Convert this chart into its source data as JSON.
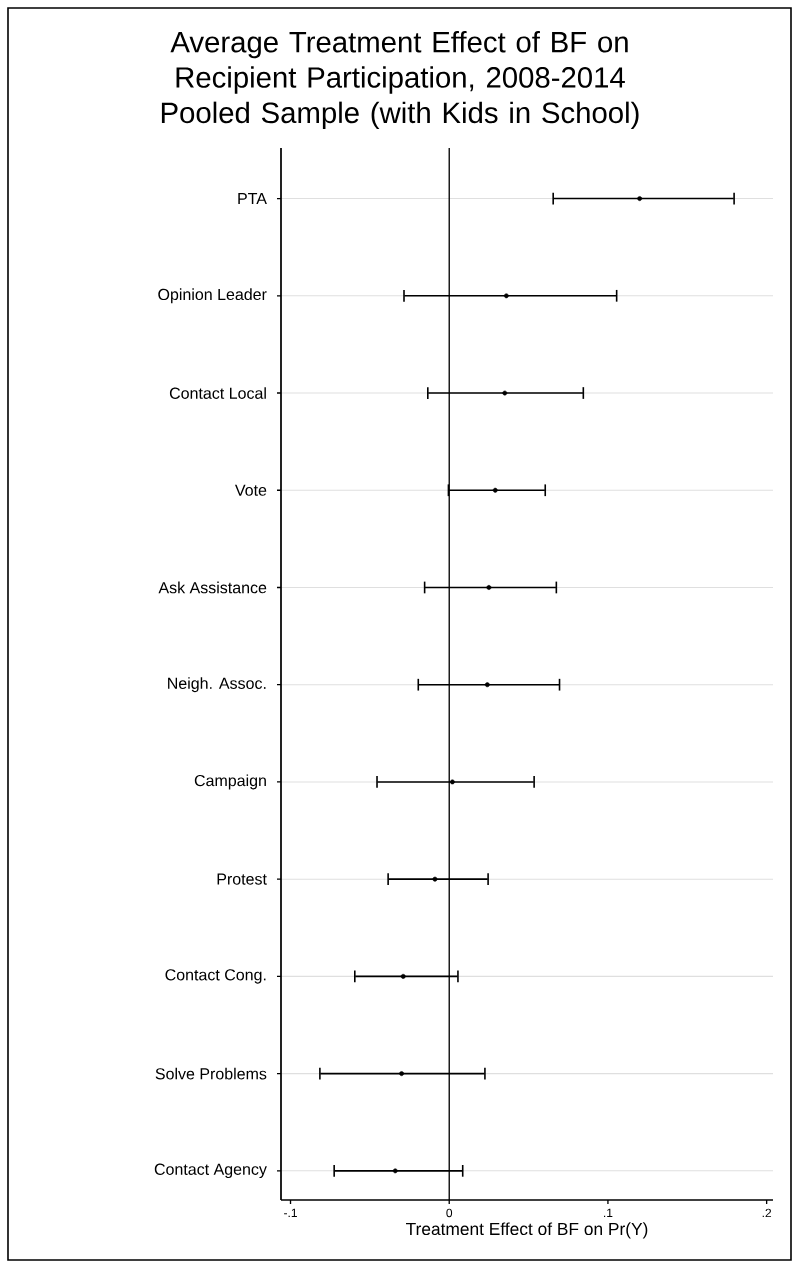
{
  "chart_data": {
    "type": "scatter",
    "orientation": "horizontal",
    "title": "Average Treatment Effect of BF on Recipient Participation, 2008-2014",
    "subtitle": "Pooled Sample (with Kids in School)",
    "xlabel": "Treatment Effect of BF on Pr(Y)",
    "categories": [
      "PTA",
      "Opinion Leader",
      "Contact Local",
      "Vote",
      "Ask Assistance",
      "Neigh. Assoc.",
      "Campaign",
      "Protest",
      "Contact Cong.",
      "Solve Problems",
      "Contact Agency"
    ],
    "values": [
      0.12,
      0.036,
      0.035,
      0.029,
      0.025,
      0.024,
      0.002,
      -0.009,
      -0.029,
      -0.03,
      -0.034
    ],
    "errors": [
      [
        0.065,
        0.18
      ],
      [
        -0.029,
        0.106
      ],
      [
        -0.014,
        0.085
      ],
      [
        -0.001,
        0.061
      ],
      [
        -0.016,
        0.068
      ],
      [
        -0.02,
        0.07
      ],
      [
        -0.046,
        0.054
      ],
      [
        -0.039,
        0.025
      ],
      [
        -0.06,
        0.006
      ],
      [
        -0.082,
        0.023
      ],
      [
        -0.073,
        0.009
      ]
    ],
    "color": "#000000",
    "xlim": [
      -0.106,
      0.204
    ],
    "xticks": [
      {
        "value": -0.1,
        "label": "-.1"
      },
      {
        "value": 0,
        "label": "0"
      },
      {
        "value": 0.1,
        "label": ".1"
      },
      {
        "value": 0.2,
        "label": ".2"
      }
    ],
    "grid": "y",
    "ref_lines": [
      {
        "axis": "x",
        "value": 0
      }
    ]
  }
}
